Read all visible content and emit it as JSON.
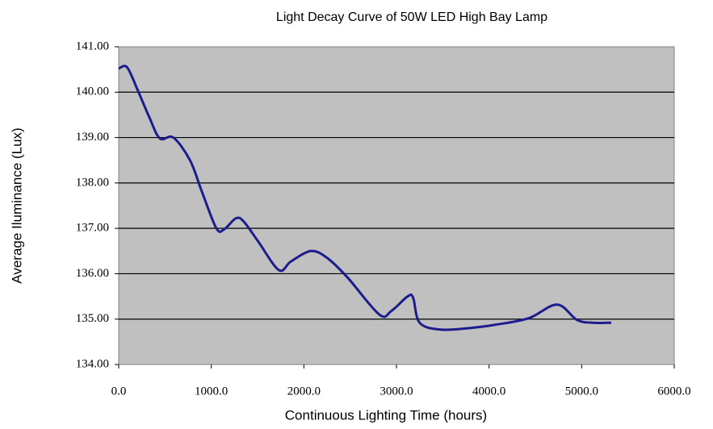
{
  "chart_data": {
    "type": "line",
    "title": "Light Decay Curve of 50W LED High Bay Lamp",
    "x_label": "Continuous Lighting Time (hours)",
    "y_label": "Average Iluminance (Lux)",
    "x": [
      0,
      90,
      200,
      330,
      445,
      590,
      770,
      900,
      1055,
      1140,
      1265,
      1350,
      1510,
      1730,
      1860,
      2075,
      2250,
      2470,
      2815,
      2945,
      3120,
      3180,
      3250,
      3470,
      3775,
      4080,
      4430,
      4735,
      4950,
      5130,
      5320
    ],
    "series": [
      {
        "color": "#1c1c8c",
        "values": [
          140.52,
          140.55,
          140.07,
          139.45,
          138.98,
          139.0,
          138.5,
          137.8,
          137.0,
          136.98,
          137.22,
          137.15,
          136.7,
          136.08,
          136.27,
          136.5,
          136.35,
          135.92,
          135.1,
          135.18,
          135.5,
          135.47,
          134.92,
          134.77,
          134.8,
          134.88,
          135.02,
          135.32,
          134.98,
          134.92,
          134.92
        ]
      }
    ],
    "xlim": [
      0,
      6000
    ],
    "xticks": [
      {
        "value": 0,
        "label": "0.0"
      },
      {
        "value": 1000,
        "label": "1000.0"
      },
      {
        "value": 2000,
        "label": "2000.0"
      },
      {
        "value": 3000,
        "label": "3000.0"
      },
      {
        "value": 4000,
        "label": "4000.0"
      },
      {
        "value": 5000,
        "label": "5000.0"
      },
      {
        "value": 6000,
        "label": "6000.0"
      }
    ],
    "ylim": [
      134,
      141
    ],
    "yticks": [
      {
        "value": 134,
        "label": "134.00"
      },
      {
        "value": 135,
        "label": "135.00"
      },
      {
        "value": 136,
        "label": "136.00"
      },
      {
        "value": 137,
        "label": "137.00"
      },
      {
        "value": 138,
        "label": "138.00"
      },
      {
        "value": 139,
        "label": "139.00"
      },
      {
        "value": 140,
        "label": "140.00"
      },
      {
        "value": 141,
        "label": "141.00"
      }
    ],
    "grid": true
  }
}
